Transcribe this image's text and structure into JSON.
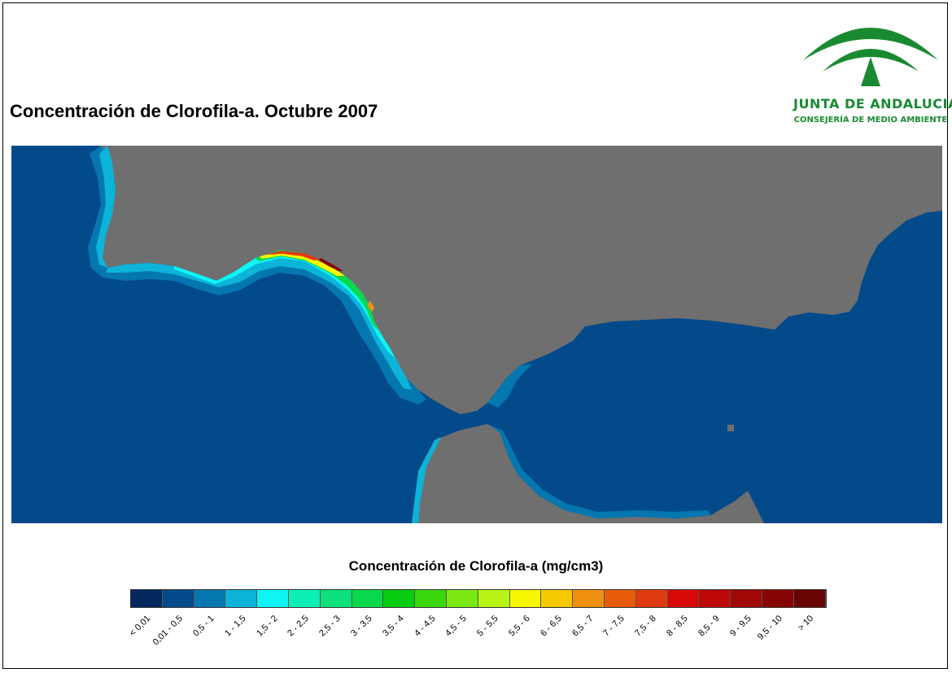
{
  "title": "Concentración de Clorofila-a. Octubre 2007",
  "organization": {
    "name": "JUNTA DE ANDALUCIA",
    "department": "CONSEJERÍA DE MEDIO AMBIENTE",
    "logo_color": "#1a8a32"
  },
  "map": {
    "sea_color": "#034a8a",
    "land_color": "#6f6f6f"
  },
  "legend": {
    "title": "Concentración de Clorofila-a (mg/cm3)",
    "classes": [
      {
        "label": "< 0,01",
        "color": "#03285e"
      },
      {
        "label": "0,01 - 0,5",
        "color": "#034a8a"
      },
      {
        "label": "0,5 - 1",
        "color": "#0477b0"
      },
      {
        "label": "1 - 1,5",
        "color": "#0bb4d8"
      },
      {
        "label": "1,5 - 2",
        "color": "#0ff5f5"
      },
      {
        "label": "2 - 2,5",
        "color": "#0cf0b8"
      },
      {
        "label": "2,5 - 3",
        "color": "#0be07a"
      },
      {
        "label": "3 - 3,5",
        "color": "#0ad84c"
      },
      {
        "label": "3,5 - 4",
        "color": "#07cc10"
      },
      {
        "label": "4 - 4,5",
        "color": "#3ad80c"
      },
      {
        "label": "4,5 - 5",
        "color": "#7be814"
      },
      {
        "label": "5 - 5,5",
        "color": "#b8f514"
      },
      {
        "label": "5,5 - 6",
        "color": "#f8f800"
      },
      {
        "label": "6 - 6,5",
        "color": "#f5c800"
      },
      {
        "label": "6,5 - 7",
        "color": "#f09010"
      },
      {
        "label": "7 - 7,5",
        "color": "#e85c08"
      },
      {
        "label": "7,5 - 8",
        "color": "#e03a10"
      },
      {
        "label": "8 - 8,5",
        "color": "#d80808"
      },
      {
        "label": "8,5 - 9",
        "color": "#bf0808"
      },
      {
        "label": "9 - 9,5",
        "color": "#a00808"
      },
      {
        "label": "9,5 - 10",
        "color": "#880404"
      },
      {
        "label": "> 10",
        "color": "#680404"
      }
    ]
  }
}
